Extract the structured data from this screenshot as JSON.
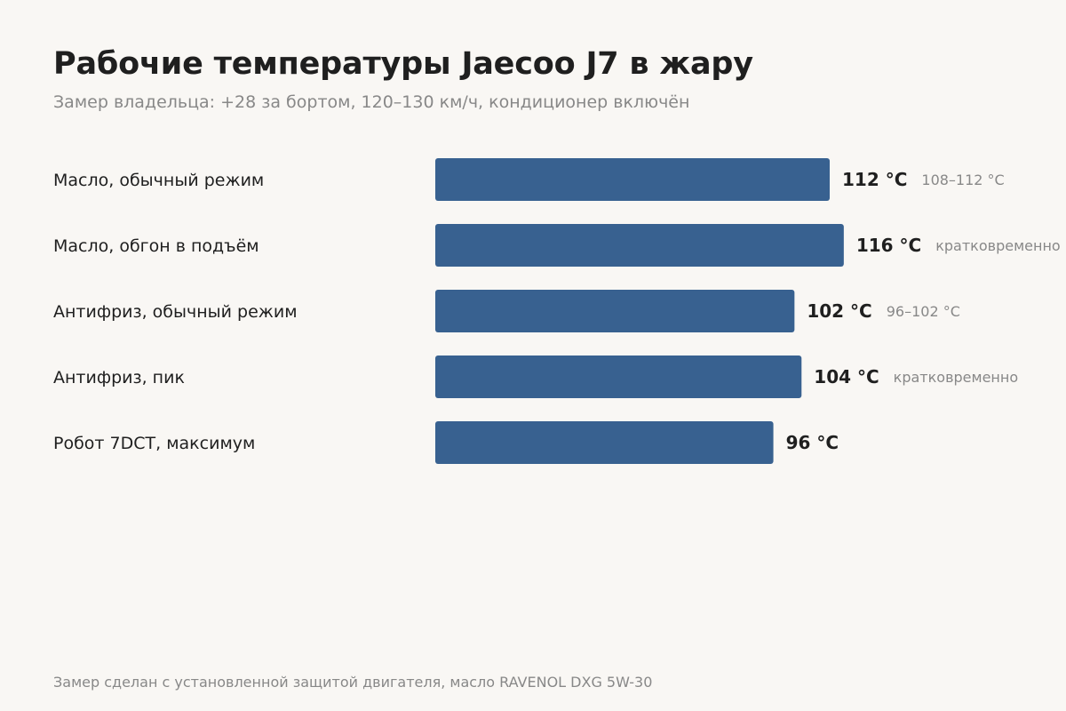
{
  "title": "Рабочие температуры Jaecoo J7 в жару",
  "subtitle": "Замер владельца: +28 за бортом, 120–130 км/ч, кондиционер включён",
  "footnote": "Замер сделан с установленной защитой двигателя, масло RAVENOL DXG 5W-30",
  "colors": {
    "bar": "#386190",
    "label": "#1f1f1f",
    "note": "#888888",
    "background": "#f9f7f4"
  },
  "chart_data": {
    "type": "bar",
    "orientation": "horizontal",
    "categories": [
      "Масло, обычный режим",
      "Масло, обгон в подъём",
      "Антифриз, обычный режим",
      "Антифриз, пик",
      "Робот 7DCT, максимум"
    ],
    "values": [
      112,
      116,
      102,
      104,
      96
    ],
    "value_labels": [
      "112 °C",
      "116 °C",
      "102 °C",
      "104 °C",
      "96 °C"
    ],
    "notes": [
      "108–112 °C",
      "кратковременно",
      "96–102 °C",
      "кратковременно",
      ""
    ],
    "unit": "°C",
    "xlim": [
      0,
      125
    ],
    "grid": false,
    "legend": "none"
  }
}
